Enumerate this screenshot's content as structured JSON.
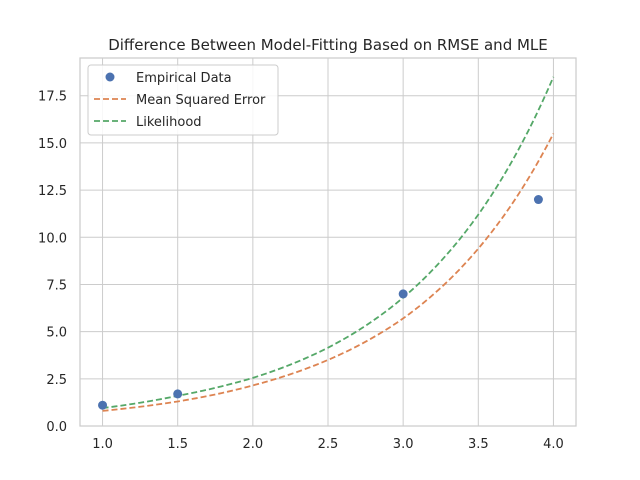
{
  "chart_data": {
    "type": "line",
    "title": "Difference Between Model-Fitting Based on RMSE and MLE",
    "xlabel": "",
    "ylabel": "",
    "xlim": [
      0.85,
      4.15
    ],
    "ylim": [
      0,
      19.5
    ],
    "xticks": [
      1.0,
      1.5,
      2.0,
      2.5,
      3.0,
      3.5,
      4.0
    ],
    "xtick_labels": [
      "1.0",
      "1.5",
      "2.0",
      "2.5",
      "3.0",
      "3.5",
      "4.0"
    ],
    "yticks": [
      0.0,
      2.5,
      5.0,
      7.5,
      10.0,
      12.5,
      15.0,
      17.5
    ],
    "ytick_labels": [
      "0.0",
      "2.5",
      "5.0",
      "7.5",
      "10.0",
      "12.5",
      "15.0",
      "17.5"
    ],
    "grid": true,
    "legend_position": "top-left",
    "series": [
      {
        "name": "Empirical Data",
        "kind": "scatter",
        "color": "#4c72b0",
        "x": [
          1.0,
          1.5,
          3.0,
          3.9
        ],
        "y": [
          1.1,
          1.7,
          7.0,
          12.0
        ]
      },
      {
        "name": "Mean Squared Error",
        "kind": "dashed-line",
        "color": "#dd8452",
        "x": [
          1.0,
          1.5,
          2.0,
          2.5,
          3.0,
          3.5,
          4.0
        ],
        "y": [
          0.8,
          1.3,
          2.15,
          3.5,
          5.7,
          9.4,
          15.5
        ]
      },
      {
        "name": "Likelihood",
        "kind": "dashed-line",
        "color": "#55a868",
        "x": [
          1.0,
          1.5,
          2.0,
          2.5,
          3.0,
          3.5,
          4.0
        ],
        "y": [
          0.95,
          1.6,
          2.55,
          4.15,
          6.8,
          11.2,
          18.5
        ]
      }
    ]
  }
}
